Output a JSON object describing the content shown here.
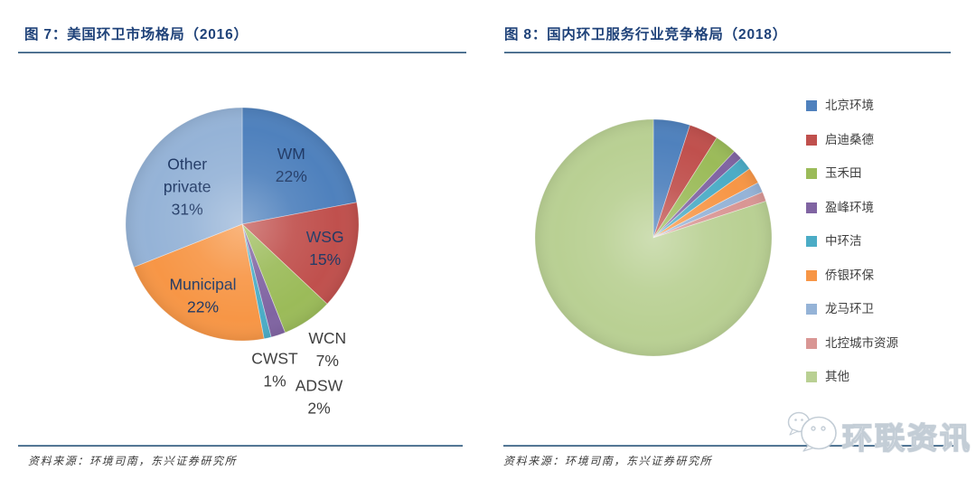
{
  "chart_data": [
    {
      "type": "pie",
      "title": "图 7：美国环卫市场格局（2016）",
      "legend_position": "none",
      "start_angle_deg": 0,
      "units": "%",
      "slices": [
        {
          "label": "WM",
          "value": 22,
          "color": "#4F81BD",
          "placement": "inside"
        },
        {
          "label": "WSG",
          "value": 15,
          "color": "#C0504D",
          "placement": "inside"
        },
        {
          "label": "WCN",
          "value": 7,
          "color": "#9BBB59",
          "placement": "outside"
        },
        {
          "label": "ADSW",
          "value": 2,
          "color": "#8064A2",
          "placement": "outside"
        },
        {
          "label": "CWST",
          "value": 1,
          "color": "#4BACC6",
          "placement": "outside"
        },
        {
          "label": "Municipal",
          "value": 22,
          "color": "#F79646",
          "placement": "inside"
        },
        {
          "label": "Other private",
          "value": 31,
          "color": "#95B3D7",
          "placement": "inside"
        }
      ],
      "source": "资料来源：环境司南，东兴证券研究所"
    },
    {
      "type": "pie",
      "title": "图 8：国内环卫服务行业竞争格局（2018）",
      "legend_position": "right",
      "start_angle_deg": 0,
      "units": "%",
      "values_are_estimated_from_arc_angles": true,
      "slices": [
        {
          "label": "北京环境",
          "value": 5.0,
          "color": "#4F81BD"
        },
        {
          "label": "启迪桑德",
          "value": 4.0,
          "color": "#C0504D"
        },
        {
          "label": "玉禾田",
          "value": 3.0,
          "color": "#9BBB59"
        },
        {
          "label": "盈峰环境",
          "value": 1.3,
          "color": "#8064A2"
        },
        {
          "label": "中环洁",
          "value": 1.8,
          "color": "#4BACC6"
        },
        {
          "label": "侨银环保",
          "value": 2.2,
          "color": "#F79646"
        },
        {
          "label": "龙马环卫",
          "value": 1.4,
          "color": "#95B3D7"
        },
        {
          "label": "北控城市资源",
          "value": 1.3,
          "color": "#D99694"
        },
        {
          "label": "其他",
          "value": 80.0,
          "color": "#B9D093"
        }
      ],
      "source": "资料来源：环境司南，东兴证券研究所"
    }
  ],
  "watermark": {
    "text": "环联资讯",
    "icon": "wechat-chat-bubbles-icon"
  },
  "style_colors": {
    "title_navy": "#1F4279",
    "inside_label_navy": "#1F3864",
    "outside_label_gray": "#3F3F3F",
    "rule_blue_dark": "#16395C",
    "rule_blue_light": "#8FB2CC"
  }
}
